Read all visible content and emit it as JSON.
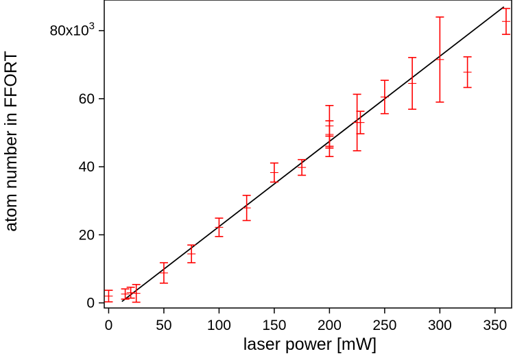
{
  "chart_data": {
    "type": "scatter",
    "xlabel": "laser power [mW]",
    "ylabel": "atom number in FFORT",
    "xlim": [
      -4,
      365
    ],
    "ylim": [
      -1.5,
      89
    ],
    "x_ticks": [
      0,
      50,
      100,
      150,
      200,
      250,
      300,
      350
    ],
    "x_tick_labels": [
      "0",
      "50",
      "100",
      "150",
      "200",
      "250",
      "300",
      "350"
    ],
    "y_ticks": [
      0,
      20,
      40,
      60,
      80
    ],
    "y_tick_labels": [
      "0",
      "20",
      "40",
      "60",
      "80x10"
    ],
    "y_tick_exponent": "3",
    "marker_color": "#ff0000",
    "fit_color": "#000000",
    "points": [
      {
        "x": 0,
        "y": 2.0,
        "err": 1.7
      },
      {
        "x": 15,
        "y": 2.6,
        "err": 1.5
      },
      {
        "x": 20,
        "y": 3.0,
        "err": 1.6
      },
      {
        "x": 25,
        "y": 2.8,
        "err": 2.6
      },
      {
        "x": 50,
        "y": 8.8,
        "err": 3.0
      },
      {
        "x": 75,
        "y": 14.4,
        "err": 2.6
      },
      {
        "x": 100,
        "y": 22.2,
        "err": 2.7
      },
      {
        "x": 125,
        "y": 27.9,
        "err": 3.7
      },
      {
        "x": 150,
        "y": 38.3,
        "err": 2.8
      },
      {
        "x": 175,
        "y": 39.8,
        "err": 2.3
      },
      {
        "x": 200,
        "y": 52.0,
        "err": 6.0
      },
      {
        "x": 200,
        "y": 49.5,
        "err": 4.0
      },
      {
        "x": 200,
        "y": 46.0,
        "err": 3.0
      },
      {
        "x": 225,
        "y": 53.0,
        "err": 8.3
      },
      {
        "x": 228,
        "y": 53.0,
        "err": 3.3
      },
      {
        "x": 250,
        "y": 60.5,
        "err": 4.9
      },
      {
        "x": 275,
        "y": 64.5,
        "err": 7.6
      },
      {
        "x": 300,
        "y": 71.5,
        "err": 12.5
      },
      {
        "x": 325,
        "y": 67.8,
        "err": 4.5
      },
      {
        "x": 360,
        "y": 82.7,
        "err": 3.8
      }
    ],
    "fit_line": {
      "x": [
        12,
        358
      ],
      "y": [
        0.4,
        87.0
      ]
    }
  }
}
